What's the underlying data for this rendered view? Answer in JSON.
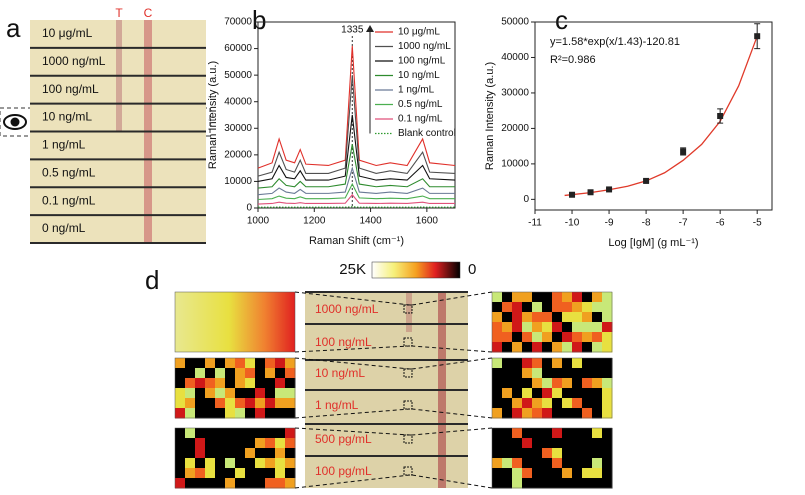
{
  "panel_labels": [
    "a",
    "b",
    "c",
    "d"
  ],
  "panel_a": {
    "strip_labels": [
      "10 μg/mL",
      "1000 ng/mL",
      "100 ng/mL",
      "10 ng/mL",
      "1 ng/mL",
      "0.5 ng/mL",
      "0.1 ng/mL",
      "0 ng/mL"
    ],
    "line_labels": [
      "T",
      "C"
    ]
  },
  "panel_d": {
    "colorbar_labels": [
      "25K",
      "0"
    ],
    "strip_labels": [
      "1000 ng/mL",
      "100 ng/mL",
      "10 ng/mL",
      "1 ng/mL",
      "500 pg/mL",
      "100 pg/mL"
    ]
  },
  "chart_data": [
    {
      "type": "line",
      "x_label": "Raman Shift (cm⁻¹)",
      "y_label": "Raman Intensity (a.u.)",
      "annotation": "1335",
      "x": [
        1000,
        1050,
        1075,
        1100,
        1130,
        1150,
        1170,
        1250,
        1310,
        1335,
        1360,
        1420,
        1470,
        1530,
        1585,
        1610,
        1700
      ],
      "xlim": [
        1000,
        1700
      ],
      "xticks": [
        1000,
        1200,
        1400,
        1600
      ],
      "ylim": [
        0,
        70000
      ],
      "yticks": [
        0,
        10000,
        20000,
        30000,
        40000,
        50000,
        60000,
        70000
      ],
      "series": [
        {
          "name": "10 μg/mL",
          "color": "#e0302a",
          "values": [
            15000,
            17000,
            26000,
            18000,
            17000,
            22000,
            16500,
            16000,
            18000,
            61000,
            18000,
            16000,
            17000,
            16000,
            26000,
            17000,
            16000
          ]
        },
        {
          "name": "1000 ng/mL",
          "color": "#505050",
          "values": [
            12000,
            13500,
            21000,
            14500,
            13500,
            18000,
            13000,
            13000,
            15000,
            50000,
            15000,
            13000,
            14000,
            13000,
            21000,
            13500,
            13000
          ]
        },
        {
          "name": "100 ng/mL",
          "color": "#111111",
          "values": [
            10000,
            11000,
            16000,
            11500,
            11000,
            14000,
            10500,
            10500,
            12000,
            35000,
            12000,
            10500,
            11000,
            10500,
            16000,
            11000,
            10500
          ]
        },
        {
          "name": "10 ng/mL",
          "color": "#2e8b2e",
          "values": [
            7500,
            8000,
            11000,
            8500,
            8000,
            10000,
            8000,
            8000,
            9000,
            24000,
            9000,
            8000,
            8500,
            8000,
            11000,
            8000,
            8000
          ]
        },
        {
          "name": "1 ng/mL",
          "color": "#6a7a96",
          "values": [
            5000,
            5500,
            7500,
            6000,
            5500,
            7000,
            5500,
            5500,
            6000,
            15000,
            6000,
            5500,
            6000,
            5500,
            7500,
            5500,
            5500
          ]
        },
        {
          "name": "0.5 ng/mL",
          "color": "#4caf50",
          "values": [
            3200,
            3500,
            4500,
            3700,
            3500,
            4200,
            3500,
            3500,
            3800,
            9000,
            3800,
            3500,
            3700,
            3500,
            4500,
            3500,
            3500
          ]
        },
        {
          "name": "0.1 ng/mL",
          "color": "#e0507a",
          "values": [
            1500,
            1700,
            2200,
            1800,
            1700,
            2000,
            1700,
            1700,
            1800,
            5000,
            1800,
            1700,
            1800,
            1700,
            2200,
            1700,
            1700
          ]
        },
        {
          "name": "Blank control",
          "color": "#2e9a2e",
          "linestyle": "dotted",
          "values": [
            300,
            300,
            350,
            300,
            300,
            320,
            300,
            300,
            300,
            500,
            300,
            300,
            300,
            300,
            350,
            300,
            300
          ]
        }
      ]
    },
    {
      "type": "scatter",
      "x_label": "Log [IgM] (g mL⁻¹)",
      "y_label": "Raman Intensity (a.u.)",
      "equation": "y=1.58*exp(x/1.43)-120.81",
      "r2": "R²=0.986",
      "x": [
        -10,
        -9.5,
        -9,
        -8,
        -7,
        -6,
        -5
      ],
      "xlim": [
        -11,
        -4.6
      ],
      "xticks": [
        -11,
        -10,
        -9,
        -8,
        -7,
        -6,
        -5
      ],
      "ylim": [
        -3000,
        50000
      ],
      "yticks": [
        0,
        10000,
        20000,
        30000,
        40000,
        50000
      ],
      "series": [
        {
          "color": "#222222",
          "values": [
            1300,
            2000,
            2800,
            5200,
            13500,
            23500,
            46000
          ],
          "errors": [
            300,
            300,
            300,
            300,
            1000,
            2000,
            3500
          ]
        }
      ],
      "fit": {
        "color": "#e03a2a",
        "x": [
          -10.2,
          -9.5,
          -9,
          -8.5,
          -8,
          -7.5,
          -7,
          -6.5,
          -6,
          -5.5,
          -5
        ],
        "values": [
          1100,
          1900,
          2700,
          3700,
          5200,
          7500,
          11000,
          15500,
          22000,
          32000,
          46000
        ]
      }
    }
  ]
}
